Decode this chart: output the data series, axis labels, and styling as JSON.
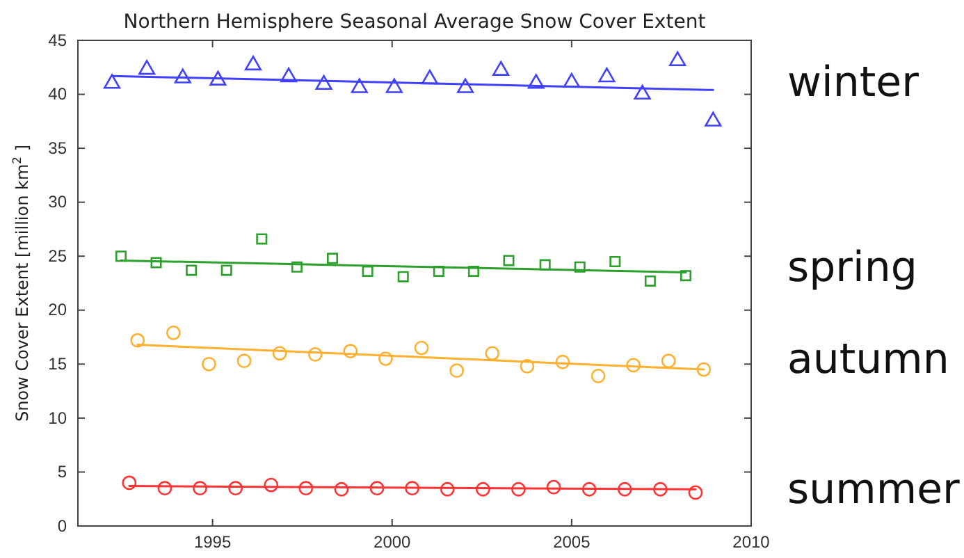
{
  "chart_data": {
    "type": "scatter",
    "title": "Northern Hemisphere Seasonal Average Snow Cover Extent",
    "ylabel": "Snow Cover Extent [million km$^{2}$ ]",
    "xlim": [
      1991.25,
      2010
    ],
    "xticks": [
      1995,
      2000,
      2005,
      2010
    ],
    "ylim": [
      0,
      45
    ],
    "yticks": [
      0,
      5,
      10,
      15,
      20,
      25,
      30,
      35,
      40,
      45
    ],
    "grid": false,
    "legend": false,
    "series": [
      {
        "name": "winter",
        "marker": "triangle",
        "color": "#4040ff",
        "x": [
          1992.2,
          1993.17,
          1994.17,
          1995.15,
          1996.13,
          1997.12,
          1998.1,
          1999.09,
          2000.06,
          2001.05,
          2002.04,
          2003.03,
          2004.01,
          2005.0,
          2005.98,
          2006.97,
          2007.95,
          2008.94
        ],
        "values": [
          41.0,
          42.3,
          41.5,
          41.3,
          42.7,
          41.6,
          40.9,
          40.6,
          40.6,
          41.4,
          40.6,
          42.2,
          41.0,
          41.1,
          41.6,
          40.0,
          43.1,
          37.5
        ]
      },
      {
        "type": "line",
        "marker": "none",
        "color": "#4040ff",
        "x": [
          1992.2,
          2008.94
        ],
        "values": [
          41.7,
          40.4
        ]
      },
      {
        "name": "spring",
        "marker": "square",
        "color": "#2ca02c",
        "x": [
          1992.45,
          1993.43,
          1994.41,
          1995.39,
          1996.37,
          1997.35,
          1998.34,
          1999.32,
          2000.31,
          2001.3,
          2002.27,
          2003.25,
          2004.26,
          2005.23,
          2006.21,
          2007.19,
          2008.18
        ],
        "values": [
          25.0,
          24.4,
          23.7,
          23.7,
          26.6,
          24.0,
          24.8,
          23.6,
          23.1,
          23.6,
          23.6,
          24.6,
          24.2,
          24.0,
          24.5,
          22.7,
          23.2
        ]
      },
      {
        "type": "line",
        "marker": "none",
        "color": "#2ca02c",
        "x": [
          1992.45,
          2008.18
        ],
        "values": [
          24.6,
          23.5
        ]
      },
      {
        "name": "autumn",
        "marker": "circle",
        "color": "#ffb030",
        "x": [
          1992.91,
          1993.91,
          1994.9,
          1995.88,
          1996.87,
          1997.86,
          1998.84,
          1999.82,
          2000.82,
          2001.8,
          2002.79,
          2003.76,
          2004.75,
          2005.74,
          2006.72,
          2007.7,
          2008.68
        ],
        "values": [
          17.2,
          17.9,
          15.0,
          15.3,
          16.0,
          15.9,
          16.2,
          15.5,
          16.5,
          14.4,
          16.0,
          14.8,
          15.2,
          13.9,
          14.9,
          15.3,
          14.5
        ]
      },
      {
        "type": "line",
        "marker": "none",
        "color": "#ffb030",
        "x": [
          1992.91,
          2008.68
        ],
        "values": [
          16.8,
          14.5
        ]
      },
      {
        "name": "summer",
        "marker": "circle",
        "color": "#ff3333",
        "x": [
          1992.68,
          1993.67,
          1994.65,
          1995.64,
          1996.63,
          1997.6,
          1998.59,
          1999.58,
          2000.56,
          2001.54,
          2002.53,
          2003.52,
          2004.5,
          2005.49,
          2006.48,
          2007.47,
          2008.45
        ],
        "values": [
          4.0,
          3.5,
          3.5,
          3.5,
          3.8,
          3.5,
          3.4,
          3.5,
          3.5,
          3.4,
          3.4,
          3.4,
          3.6,
          3.4,
          3.4,
          3.4,
          3.1
        ]
      },
      {
        "type": "line",
        "marker": "none",
        "color": "#ff3333",
        "x": [
          1992.68,
          2008.45
        ],
        "values": [
          3.7,
          3.4
        ]
      }
    ]
  }
}
